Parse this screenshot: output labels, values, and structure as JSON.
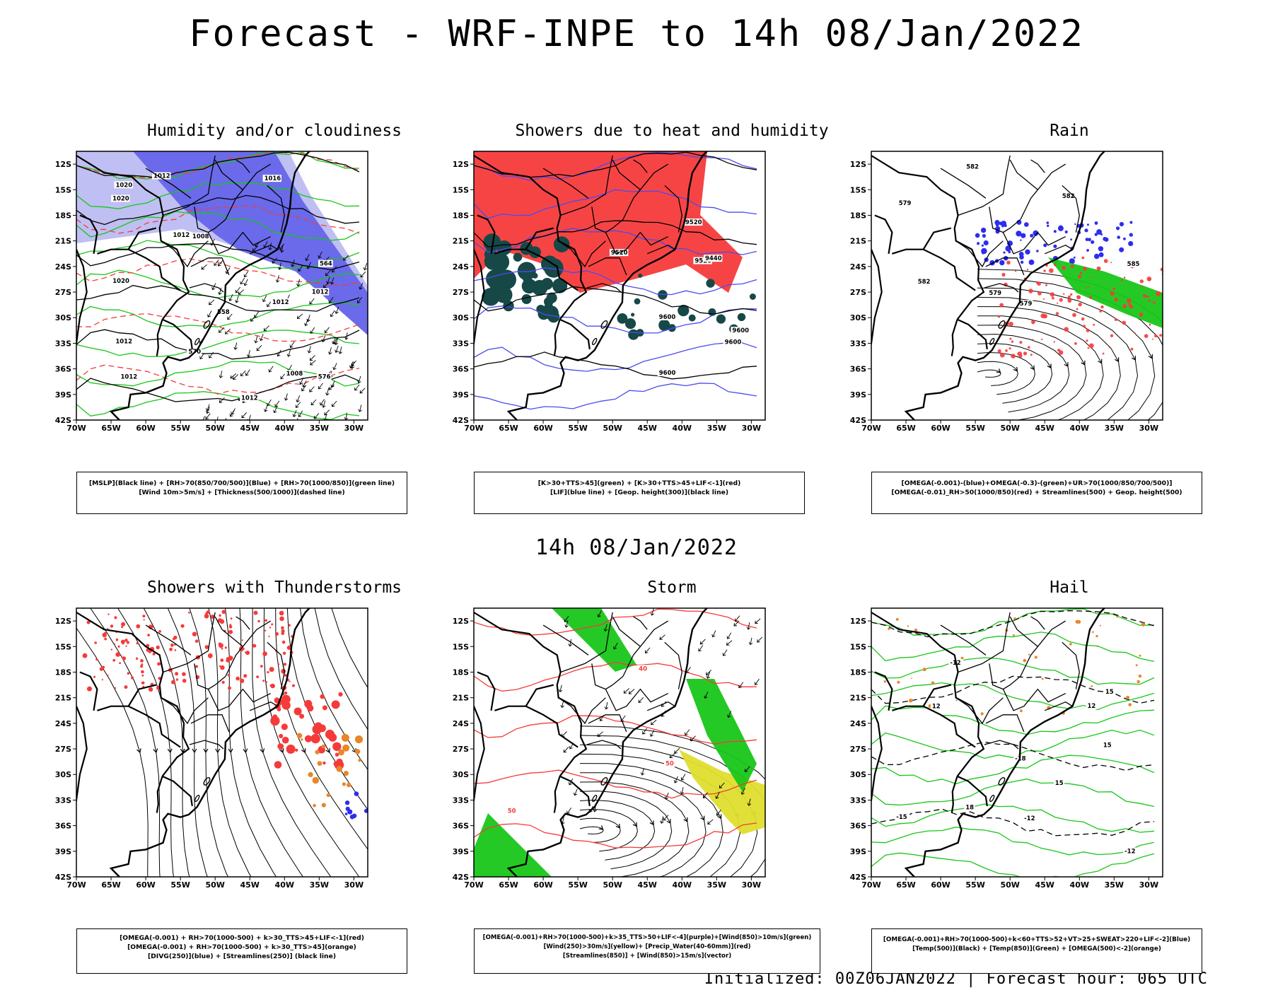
{
  "title": "Forecast - WRF-INPE to 14h 08/Jan/2022",
  "subtitle": "14h 08/Jan/2022",
  "footer": "Initialized: 00Z06JAN2022 | Forecast hour: 065 UTC",
  "axes": {
    "lat_labels": [
      "12S",
      "15S",
      "18S",
      "21S",
      "24S",
      "27S",
      "30S",
      "33S",
      "36S",
      "39S",
      "42S"
    ],
    "lon_labels": [
      "70W",
      "65W",
      "60W",
      "55W",
      "50W",
      "45W",
      "40W",
      "35W",
      "30W"
    ]
  },
  "colors": {
    "blue_dark": "#5b5be8",
    "blue_light": "#b8b8f2",
    "green": "#19c619",
    "red": "#f63a3a",
    "dark_teal": "#174848",
    "orange": "#e8862a",
    "yellow": "#dede2e",
    "purple": "#9b3bd1"
  },
  "panels": [
    {
      "title": "Humidity and/or cloudiness",
      "legend": [
        "[MSLP](Black line) + [RH>70(850/700/500)](Blue) + [RH>70(1000/850)](green line)",
        "[Wind 10m>5m/s] + [Thickness(500/1000)](dashed line)"
      ],
      "contour_labels": [
        "1012",
        "1012",
        "1012",
        "1012",
        "1008",
        "1008",
        "1012",
        "1016",
        "1012",
        "1012",
        "1020",
        "1020",
        "1020",
        "576",
        "570",
        "564",
        "558"
      ]
    },
    {
      "title": "Showers due to heat and humidity",
      "legend": [
        "[K>30+TTS>45](green) + [K>30+TTS>45+LIF<-1](red)",
        "[LIF](blue line) + [Geop. height(300)](black line)"
      ],
      "contour_labels": [
        "9600",
        "9600",
        "9520",
        "9600",
        "9600",
        "9520",
        "9440",
        "9520"
      ]
    },
    {
      "title": "Rain",
      "legend": [
        "[OMEGA(-0.001)-(blue)+OMEGA(-0.3)-(green)+UR>70(1000/850/700/500)]",
        "[OMEGA(-0.01)_RH>50(1000/850)(red) + Streamlines(500) + Geop. height(500)"
      ],
      "contour_labels": [
        "582",
        "582",
        "585",
        "579",
        "579",
        "582",
        "579"
      ]
    },
    {
      "title": "Showers with Thunderstorms",
      "legend": [
        "[OMEGA(-0.001) + RH>70(1000-500) + k>30_TTS>45+LIF<-1](red)",
        "[OMEGA(-0.001) + RH>70(1000-500) + k>30_TTS>45](orange)",
        "[DIVG(250)](blue) + [Streamlines(250)] (black line)"
      ],
      "contour_labels": []
    },
    {
      "title": "Storm",
      "legend": [
        "[OMEGA(-0.001)+RH>70(1000-500)+k>35_TTS>50+LIF<-4](purple)+[Wind(850)>10m/s](green)",
        "[Wind(250)>30m/s](yellow)+ [Precip_Water(40-60mm)](red)",
        "[Streamlines(850)] + [Wind(850)>15m/s](vector)"
      ],
      "contour_labels": [
        "50",
        "50",
        "40"
      ]
    },
    {
      "title": "Hail",
      "legend": [
        "[OMEGA(-0.001)+RH>70(1000-500)+k<60+TTS>52+VT>25+SWEAT>220+LIF<-2](Blue)",
        "[Temp(500)](Black) + [Temp(850)](Green) + [OMEGA(500)<-2](orange)"
      ],
      "contour_labels": [
        "-12",
        "-12",
        "-12",
        "-15",
        "-18",
        "12",
        "12",
        "15",
        "15",
        "18",
        "15"
      ]
    }
  ]
}
